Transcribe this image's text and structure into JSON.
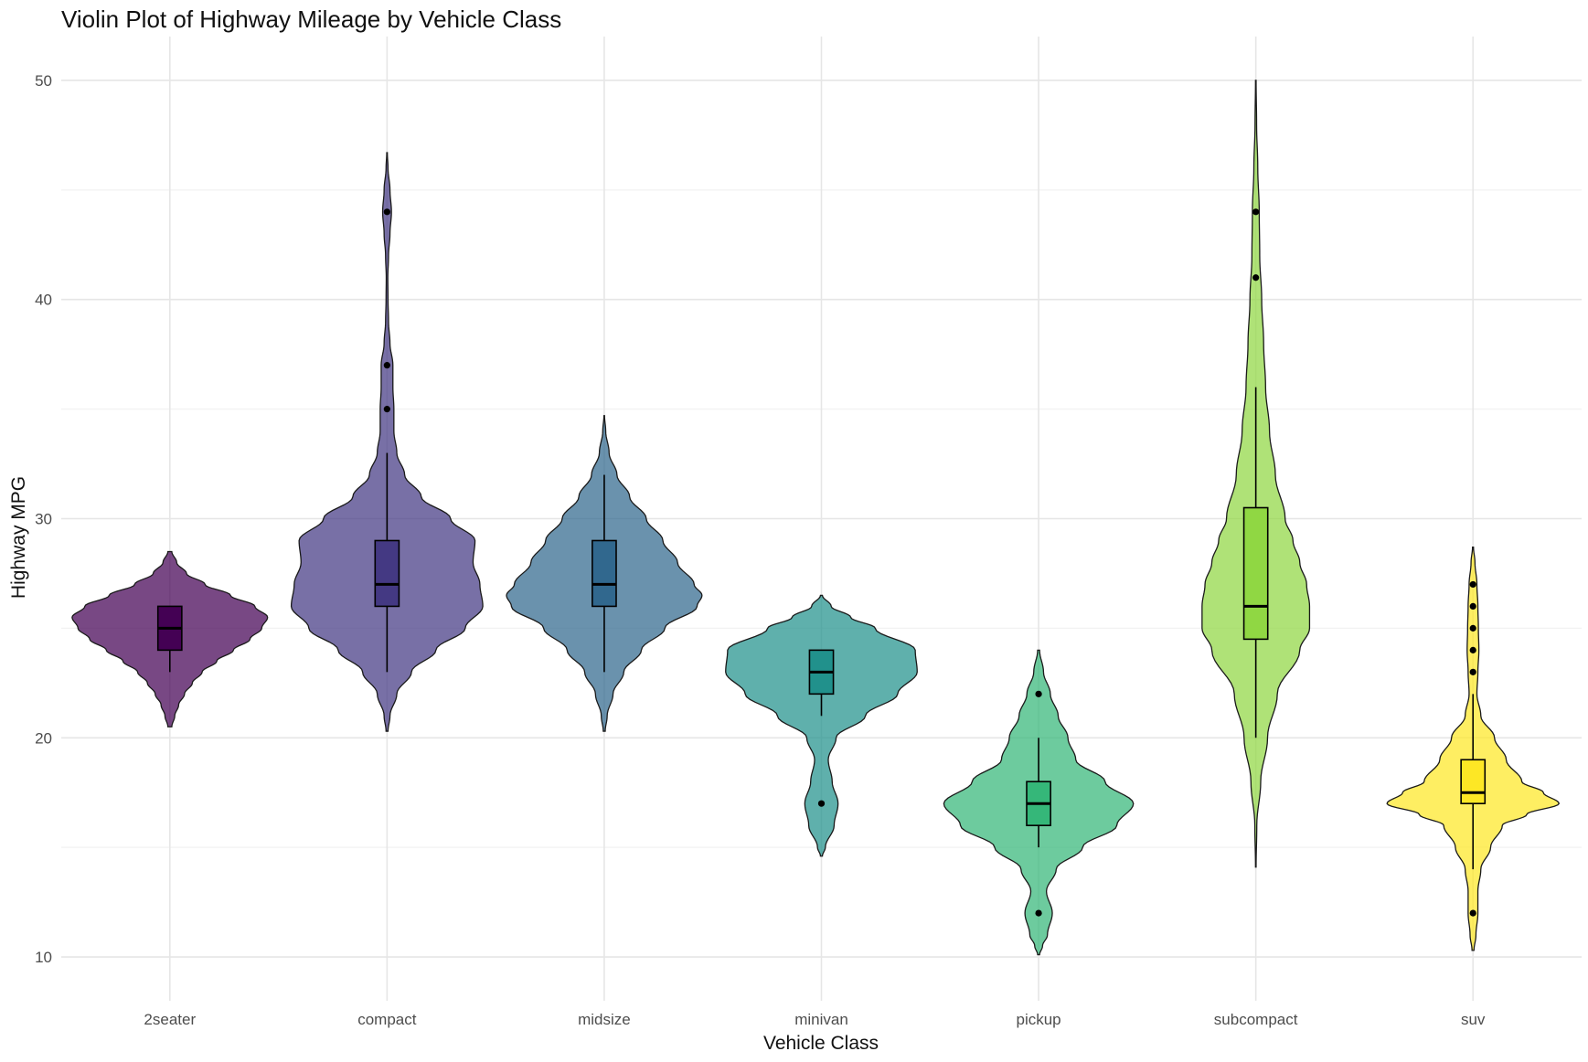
{
  "chart_data": {
    "type": "violin",
    "title": "Violin Plot of Highway Mileage by Vehicle Class",
    "xlabel": "Vehicle Class",
    "ylabel": "Highway MPG",
    "categories": [
      "2seater",
      "compact",
      "midsize",
      "minivan",
      "pickup",
      "subcompact",
      "suv"
    ],
    "ylim": [
      8,
      52
    ],
    "yticks": [
      10,
      20,
      30,
      40,
      50
    ],
    "yticks_minor": [
      15,
      25,
      35,
      45
    ],
    "grid": true,
    "legend": "none",
    "colors": [
      "#440154",
      "#443983",
      "#31688e",
      "#21918c",
      "#35b779",
      "#90d743",
      "#fde725"
    ],
    "violin_fill_opacity": 0.72,
    "series": [
      {
        "category": "2seater",
        "min": 20.5,
        "max": 28.5,
        "density": [
          [
            20.5,
            0.02
          ],
          [
            21,
            0.05
          ],
          [
            21.5,
            0.09
          ],
          [
            22,
            0.15
          ],
          [
            22.5,
            0.23
          ],
          [
            23,
            0.33
          ],
          [
            23.5,
            0.48
          ],
          [
            24,
            0.65
          ],
          [
            24.5,
            0.82
          ],
          [
            25,
            0.94
          ],
          [
            25.5,
            1.0
          ],
          [
            26,
            0.87
          ],
          [
            26.5,
            0.62
          ],
          [
            27,
            0.36
          ],
          [
            27.5,
            0.17
          ],
          [
            28,
            0.07
          ],
          [
            28.5,
            0.02
          ]
        ],
        "box": {
          "q1": 24,
          "median": 25,
          "q3": 26,
          "whisker_low": 23,
          "whisker_high": 26
        },
        "outliers": []
      },
      {
        "category": "compact",
        "min": 20.3,
        "max": 46.7,
        "density": [
          [
            20.3,
            0.01
          ],
          [
            21,
            0.03
          ],
          [
            22,
            0.1
          ],
          [
            23,
            0.25
          ],
          [
            24,
            0.5
          ],
          [
            25,
            0.8
          ],
          [
            26,
            0.98
          ],
          [
            27,
            0.95
          ],
          [
            28,
            0.88
          ],
          [
            29,
            0.9
          ],
          [
            30,
            0.65
          ],
          [
            31,
            0.35
          ],
          [
            32,
            0.18
          ],
          [
            33,
            0.1
          ],
          [
            34,
            0.07
          ],
          [
            35,
            0.07
          ],
          [
            36,
            0.06
          ],
          [
            37,
            0.06
          ],
          [
            38,
            0.03
          ],
          [
            39,
            0.015
          ],
          [
            40,
            0.01
          ],
          [
            41,
            0.008
          ],
          [
            42,
            0.015
          ],
          [
            43,
            0.03
          ],
          [
            44,
            0.045
          ],
          [
            45,
            0.03
          ],
          [
            46,
            0.01
          ],
          [
            46.7,
            0.003
          ]
        ],
        "box": {
          "q1": 26,
          "median": 27,
          "q3": 29,
          "whisker_low": 23,
          "whisker_high": 33
        },
        "outliers": [
          35,
          37,
          44
        ]
      },
      {
        "category": "midsize",
        "min": 20.3,
        "max": 34.7,
        "density": [
          [
            20.3,
            0.01
          ],
          [
            21,
            0.03
          ],
          [
            22,
            0.09
          ],
          [
            23,
            0.2
          ],
          [
            24,
            0.38
          ],
          [
            25,
            0.62
          ],
          [
            26,
            0.95
          ],
          [
            26.5,
            1.0
          ],
          [
            27,
            0.92
          ],
          [
            28,
            0.75
          ],
          [
            29,
            0.6
          ],
          [
            30,
            0.43
          ],
          [
            31,
            0.26
          ],
          [
            32,
            0.13
          ],
          [
            33,
            0.05
          ],
          [
            34,
            0.015
          ],
          [
            34.7,
            0.003
          ]
        ],
        "box": {
          "q1": 26,
          "median": 27,
          "q3": 29,
          "whisker_low": 23,
          "whisker_high": 32
        },
        "outliers": []
      },
      {
        "category": "minivan",
        "min": 14.6,
        "max": 26.5,
        "density": [
          [
            14.6,
            0.01
          ],
          [
            15,
            0.04
          ],
          [
            16,
            0.13
          ],
          [
            17,
            0.17
          ],
          [
            18,
            0.11
          ],
          [
            19,
            0.07
          ],
          [
            20,
            0.15
          ],
          [
            21,
            0.45
          ],
          [
            22,
            0.78
          ],
          [
            23,
            0.98
          ],
          [
            24,
            0.96
          ],
          [
            25,
            0.55
          ],
          [
            25.5,
            0.3
          ],
          [
            26,
            0.1
          ],
          [
            26.5,
            0.01
          ]
        ],
        "box": {
          "q1": 22,
          "median": 23,
          "q3": 24,
          "whisker_low": 21,
          "whisker_high": 24
        },
        "outliers": [
          17
        ]
      },
      {
        "category": "pickup",
        "min": 10.1,
        "max": 24,
        "density": [
          [
            10.1,
            0.01
          ],
          [
            10.5,
            0.04
          ],
          [
            11,
            0.09
          ],
          [
            12,
            0.14
          ],
          [
            13,
            0.08
          ],
          [
            14,
            0.18
          ],
          [
            15,
            0.45
          ],
          [
            16,
            0.8
          ],
          [
            17,
            0.97
          ],
          [
            18,
            0.68
          ],
          [
            19,
            0.38
          ],
          [
            20,
            0.3
          ],
          [
            21,
            0.2
          ],
          [
            22,
            0.12
          ],
          [
            23,
            0.05
          ],
          [
            24,
            0.01
          ]
        ],
        "box": {
          "q1": 16,
          "median": 17,
          "q3": 18,
          "whisker_low": 15,
          "whisker_high": 20
        },
        "outliers": [
          12,
          22
        ]
      },
      {
        "category": "subcompact",
        "min": 14.1,
        "max": 50,
        "density": [
          [
            14.1,
            0.003
          ],
          [
            16,
            0.01
          ],
          [
            18,
            0.05
          ],
          [
            20,
            0.12
          ],
          [
            22,
            0.22
          ],
          [
            24,
            0.45
          ],
          [
            25,
            0.55
          ],
          [
            26,
            0.55
          ],
          [
            27,
            0.52
          ],
          [
            28,
            0.45
          ],
          [
            29,
            0.38
          ],
          [
            30,
            0.3
          ],
          [
            32,
            0.2
          ],
          [
            34,
            0.14
          ],
          [
            36,
            0.1
          ],
          [
            38,
            0.08
          ],
          [
            40,
            0.06
          ],
          [
            42,
            0.04
          ],
          [
            44,
            0.035
          ],
          [
            46,
            0.02
          ],
          [
            48,
            0.008
          ],
          [
            50,
            0.003
          ]
        ],
        "box": {
          "q1": 24.5,
          "median": 26,
          "q3": 30.5,
          "whisker_low": 20,
          "whisker_high": 36
        },
        "outliers": [
          41,
          44
        ]
      },
      {
        "category": "suv",
        "min": 10.3,
        "max": 28.7,
        "density": [
          [
            10.3,
            0.01
          ],
          [
            11,
            0.03
          ],
          [
            12,
            0.05
          ],
          [
            13,
            0.05
          ],
          [
            14,
            0.08
          ],
          [
            15,
            0.18
          ],
          [
            16,
            0.3
          ],
          [
            16.5,
            0.55
          ],
          [
            17,
            0.88
          ],
          [
            17.5,
            0.72
          ],
          [
            18,
            0.5
          ],
          [
            19,
            0.34
          ],
          [
            20,
            0.22
          ],
          [
            21,
            0.08
          ],
          [
            22,
            0.04
          ],
          [
            23,
            0.05
          ],
          [
            24,
            0.06
          ],
          [
            25,
            0.055
          ],
          [
            26,
            0.05
          ],
          [
            27,
            0.04
          ],
          [
            28,
            0.02
          ],
          [
            28.7,
            0.005
          ]
        ],
        "box": {
          "q1": 17,
          "median": 17.5,
          "q3": 19,
          "whisker_low": 14,
          "whisker_high": 22
        },
        "outliers": [
          12,
          23,
          24,
          25,
          26,
          27
        ]
      }
    ]
  }
}
